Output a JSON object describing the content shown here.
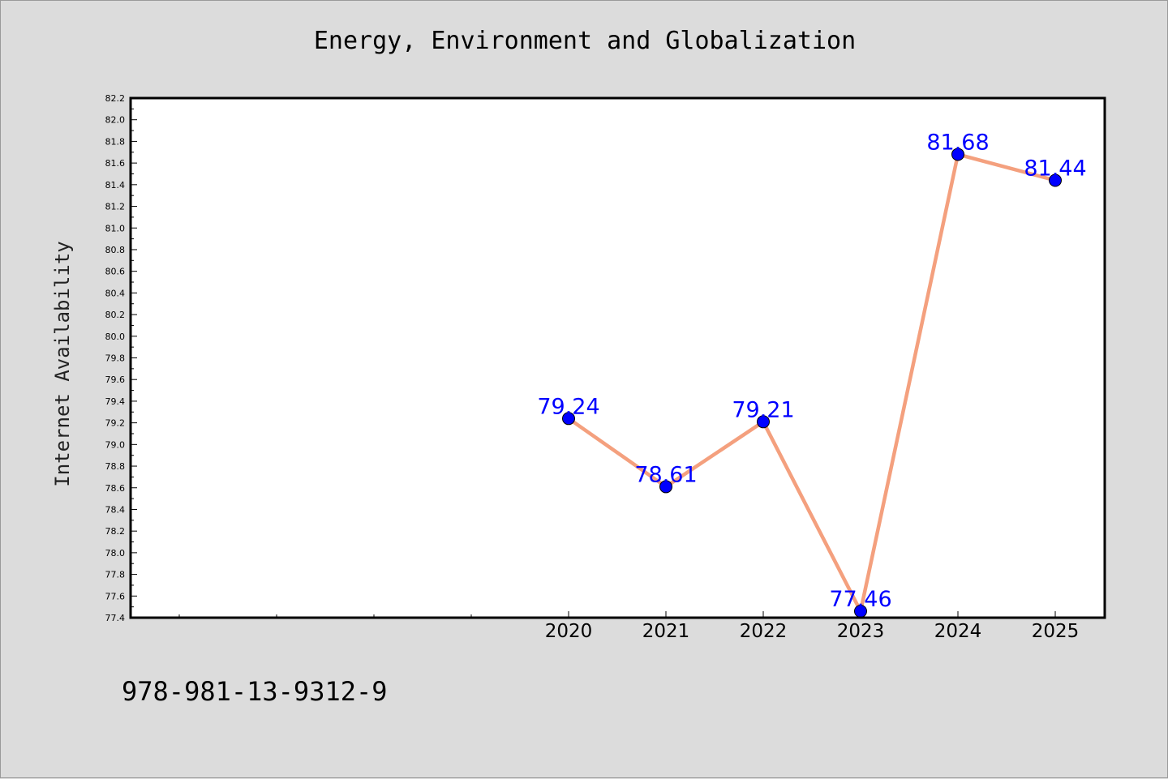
{
  "chart_data": {
    "type": "line",
    "title": "Energy, Environment and Globalization",
    "xlabel": "",
    "ylabel": "Internet Availability",
    "categories": [
      "2020",
      "2021",
      "2022",
      "2023",
      "2024",
      "2025"
    ],
    "values": [
      79.24,
      78.61,
      79.21,
      77.46,
      81.68,
      81.44
    ],
    "data_labels": [
      "79.24",
      "78.61",
      "79.21",
      "77.46",
      "81.68",
      "81.44"
    ],
    "ylim": [
      77.4,
      82.2
    ],
    "yticks": [
      "77.4",
      "77.6",
      "77.8",
      "78.0",
      "78.2",
      "78.4",
      "78.6",
      "78.8",
      "79.0",
      "79.2",
      "79.4",
      "79.6",
      "79.8",
      "80.0",
      "80.2",
      "80.4",
      "80.6",
      "80.8",
      "81.0",
      "81.2",
      "81.4",
      "81.6",
      "81.8",
      "82.0",
      "82.2"
    ],
    "grid": false,
    "legend": "none",
    "colors": {
      "line": "#f4a07e",
      "marker": "#0000ff",
      "label": "#0000ff",
      "background": "#dcdcdc",
      "plot_background": "#ffffff"
    }
  },
  "footer": {
    "id_text": "978-981-13-9312-9"
  }
}
